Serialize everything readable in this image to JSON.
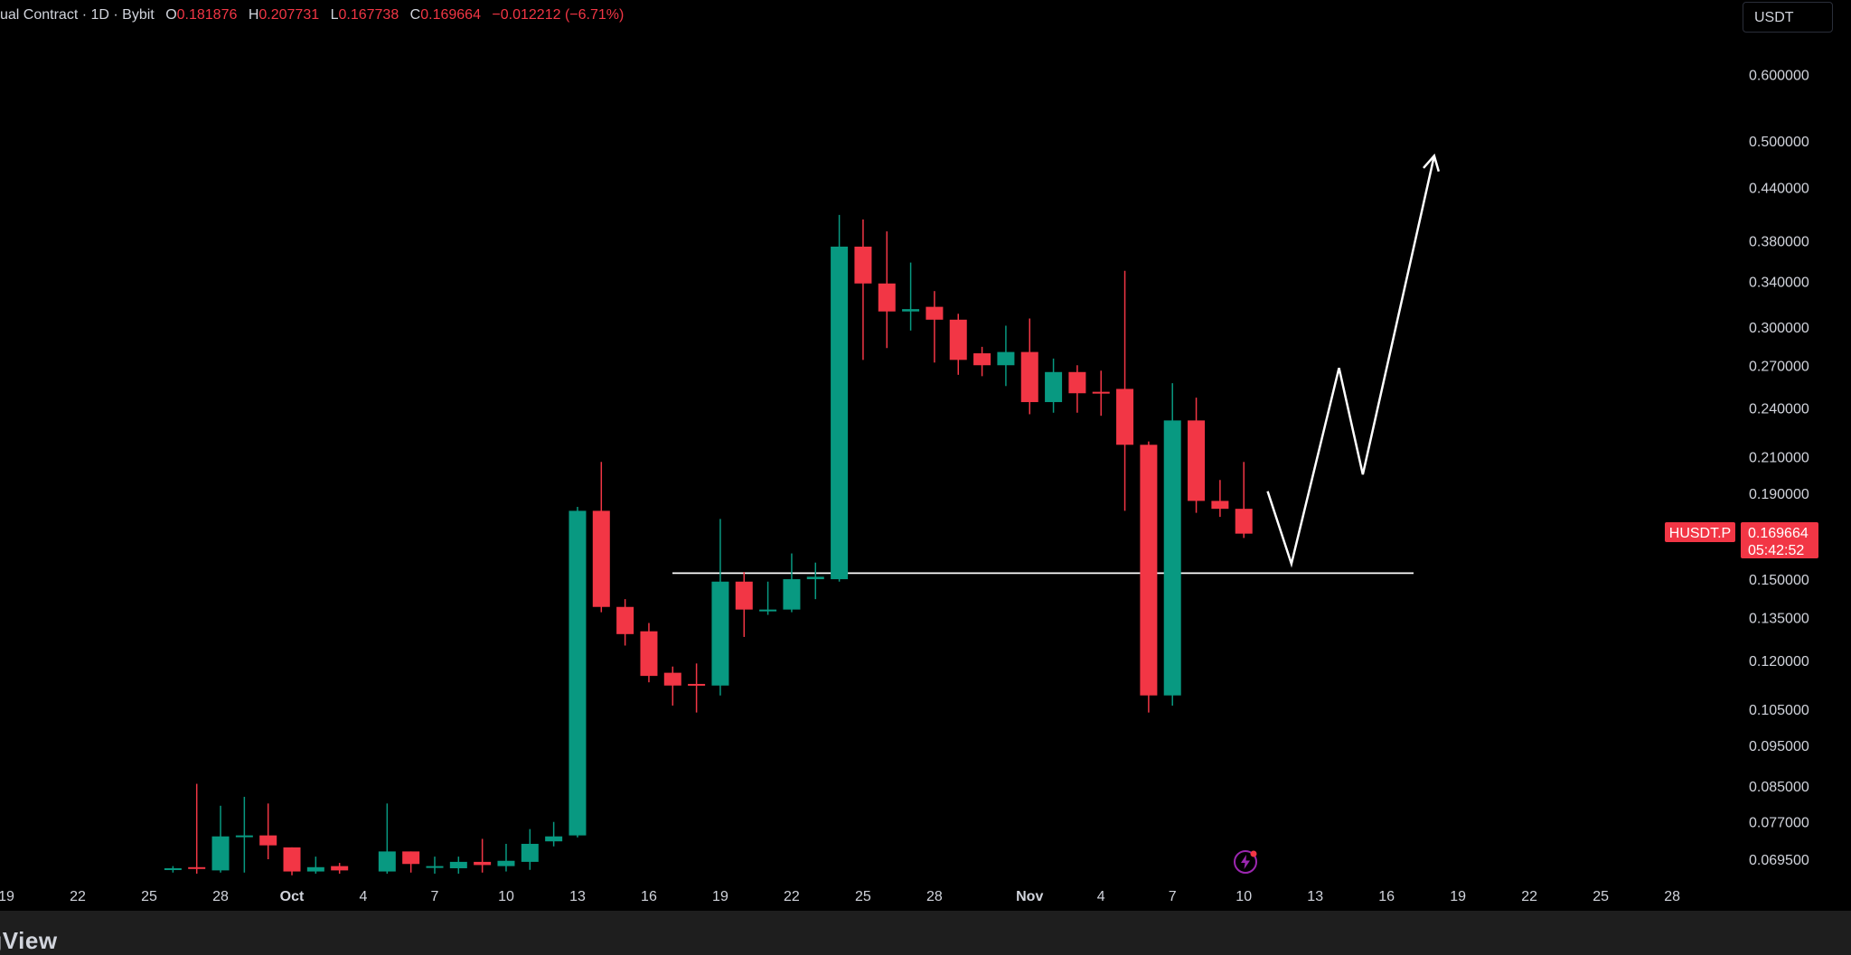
{
  "legend": {
    "title": "ual Contract · 1D · Bybit",
    "open_label": "O",
    "open": "0.181876",
    "high_label": "H",
    "high": "0.207731",
    "low_label": "L",
    "low": "0.167738",
    "close_label": "C",
    "close": "0.169664",
    "change": "−0.012212 (−6.71%)"
  },
  "currency_button": "USDT",
  "price_tag": {
    "symbol": "HUSDT.P",
    "price": "0.169664",
    "countdown": "05:42:52"
  },
  "footer": {
    "watermark": "ngView"
  },
  "colors": {
    "up": "#089981",
    "down": "#f23645",
    "background": "#000000",
    "annotation": "#ffffff"
  },
  "icons": [
    "flash-icon"
  ],
  "chart_data": {
    "type": "candlestick",
    "scale": "log",
    "y_ticks": [
      "0.600000",
      "0.500000",
      "0.440000",
      "0.380000",
      "0.340000",
      "0.300000",
      "0.270000",
      "0.240000",
      "0.210000",
      "0.190000",
      "0.150000",
      "0.135000",
      "0.120000",
      "0.105000",
      "0.095000",
      "0.085000",
      "0.077000",
      "0.069500"
    ],
    "x_ticks": [
      {
        "label": "19",
        "day": -15
      },
      {
        "label": "22",
        "day": -12
      },
      {
        "label": "25",
        "day": -9
      },
      {
        "label": "28",
        "day": -6
      },
      {
        "label": "Oct",
        "day": -3
      },
      {
        "label": "4",
        "day": 0
      },
      {
        "label": "7",
        "day": 3
      },
      {
        "label": "10",
        "day": 6
      },
      {
        "label": "13",
        "day": 9
      },
      {
        "label": "16",
        "day": 12
      },
      {
        "label": "19",
        "day": 15
      },
      {
        "label": "22",
        "day": 18
      },
      {
        "label": "25",
        "day": 21
      },
      {
        "label": "28",
        "day": 24
      },
      {
        "label": "Nov",
        "day": 28
      },
      {
        "label": "4",
        "day": 31
      },
      {
        "label": "7",
        "day": 34
      },
      {
        "label": "10",
        "day": 37
      },
      {
        "label": "13",
        "day": 40
      },
      {
        "label": "16",
        "day": 43
      },
      {
        "label": "19",
        "day": 46
      },
      {
        "label": "22",
        "day": 49
      },
      {
        "label": "25",
        "day": 52
      },
      {
        "label": "28",
        "day": 55
      }
    ],
    "candles": [
      {
        "day": -8,
        "o": 0.0676,
        "h": 0.0682,
        "l": 0.067,
        "c": 0.0678
      },
      {
        "day": -7,
        "o": 0.068,
        "h": 0.0855,
        "l": 0.0668,
        "c": 0.0678
      },
      {
        "day": -6,
        "o": 0.0674,
        "h": 0.0805,
        "l": 0.067,
        "c": 0.074
      },
      {
        "day": -5,
        "o": 0.0742,
        "h": 0.0825,
        "l": 0.067,
        "c": 0.0742
      },
      {
        "day": -4,
        "o": 0.0742,
        "h": 0.081,
        "l": 0.0695,
        "c": 0.0722
      },
      {
        "day": -3,
        "o": 0.0718,
        "h": 0.0718,
        "l": 0.0665,
        "c": 0.0672
      },
      {
        "day": -2,
        "o": 0.0672,
        "h": 0.07,
        "l": 0.0668,
        "c": 0.068
      },
      {
        "day": -1,
        "o": 0.0682,
        "h": 0.0688,
        "l": 0.0668,
        "c": 0.0674
      },
      {
        "day": 1,
        "o": 0.0672,
        "h": 0.081,
        "l": 0.0668,
        "c": 0.071
      },
      {
        "day": 2,
        "o": 0.071,
        "h": 0.071,
        "l": 0.067,
        "c": 0.0686
      },
      {
        "day": 3,
        "o": 0.068,
        "h": 0.07,
        "l": 0.0668,
        "c": 0.0682
      },
      {
        "day": 4,
        "o": 0.0678,
        "h": 0.07,
        "l": 0.0668,
        "c": 0.069
      },
      {
        "day": 5,
        "o": 0.069,
        "h": 0.0735,
        "l": 0.067,
        "c": 0.0684
      },
      {
        "day": 6,
        "o": 0.0682,
        "h": 0.0725,
        "l": 0.0672,
        "c": 0.0692
      },
      {
        "day": 7,
        "o": 0.069,
        "h": 0.0755,
        "l": 0.0675,
        "c": 0.0725
      },
      {
        "day": 8,
        "o": 0.073,
        "h": 0.077,
        "l": 0.072,
        "c": 0.074
      },
      {
        "day": 9,
        "o": 0.0742,
        "h": 0.183,
        "l": 0.0738,
        "c": 0.181
      },
      {
        "day": 10,
        "o": 0.181,
        "h": 0.207,
        "l": 0.137,
        "c": 0.139
      },
      {
        "day": 11,
        "o": 0.139,
        "h": 0.142,
        "l": 0.125,
        "c": 0.129
      },
      {
        "day": 12,
        "o": 0.13,
        "h": 0.133,
        "l": 0.113,
        "c": 0.115
      },
      {
        "day": 13,
        "o": 0.116,
        "h": 0.118,
        "l": 0.106,
        "c": 0.112
      },
      {
        "day": 14,
        "o": 0.1125,
        "h": 0.119,
        "l": 0.104,
        "c": 0.112
      },
      {
        "day": 15,
        "o": 0.112,
        "h": 0.177,
        "l": 0.109,
        "c": 0.149
      },
      {
        "day": 16,
        "o": 0.149,
        "h": 0.153,
        "l": 0.128,
        "c": 0.138
      },
      {
        "day": 17,
        "o": 0.138,
        "h": 0.149,
        "l": 0.136,
        "c": 0.138
      },
      {
        "day": 18,
        "o": 0.138,
        "h": 0.161,
        "l": 0.137,
        "c": 0.15
      },
      {
        "day": 19,
        "o": 0.15,
        "h": 0.157,
        "l": 0.142,
        "c": 0.151
      },
      {
        "day": 20,
        "o": 0.15,
        "h": 0.408,
        "l": 0.149,
        "c": 0.374
      },
      {
        "day": 21,
        "o": 0.374,
        "h": 0.403,
        "l": 0.274,
        "c": 0.338
      },
      {
        "day": 22,
        "o": 0.338,
        "h": 0.39,
        "l": 0.283,
        "c": 0.313
      },
      {
        "day": 23,
        "o": 0.313,
        "h": 0.358,
        "l": 0.297,
        "c": 0.315
      },
      {
        "day": 24,
        "o": 0.317,
        "h": 0.331,
        "l": 0.272,
        "c": 0.306
      },
      {
        "day": 25,
        "o": 0.306,
        "h": 0.311,
        "l": 0.263,
        "c": 0.274
      },
      {
        "day": 26,
        "o": 0.279,
        "h": 0.284,
        "l": 0.262,
        "c": 0.27
      },
      {
        "day": 27,
        "o": 0.27,
        "h": 0.301,
        "l": 0.255,
        "c": 0.28
      },
      {
        "day": 28,
        "o": 0.28,
        "h": 0.307,
        "l": 0.236,
        "c": 0.244
      },
      {
        "day": 29,
        "o": 0.244,
        "h": 0.275,
        "l": 0.237,
        "c": 0.265
      },
      {
        "day": 30,
        "o": 0.265,
        "h": 0.27,
        "l": 0.237,
        "c": 0.25
      },
      {
        "day": 31,
        "o": 0.251,
        "h": 0.266,
        "l": 0.235,
        "c": 0.25
      },
      {
        "day": 32,
        "o": 0.253,
        "h": 0.35,
        "l": 0.181,
        "c": 0.217
      },
      {
        "day": 33,
        "o": 0.217,
        "h": 0.219,
        "l": 0.104,
        "c": 0.109
      },
      {
        "day": 34,
        "o": 0.109,
        "h": 0.257,
        "l": 0.106,
        "c": 0.232
      },
      {
        "day": 35,
        "o": 0.232,
        "h": 0.247,
        "l": 0.18,
        "c": 0.186
      },
      {
        "day": 36,
        "o": 0.186,
        "h": 0.197,
        "l": 0.178,
        "c": 0.182
      },
      {
        "day": 37,
        "o": 0.182,
        "h": 0.207,
        "l": 0.168,
        "c": 0.17
      }
    ],
    "support_level": 0.1525,
    "projection_path": [
      {
        "day": 38,
        "price": 0.191
      },
      {
        "day": 39,
        "price": 0.1565
      },
      {
        "day": 41,
        "price": 0.268
      },
      {
        "day": 42,
        "price": 0.2
      },
      {
        "day": 45,
        "price": 0.48
      }
    ]
  }
}
